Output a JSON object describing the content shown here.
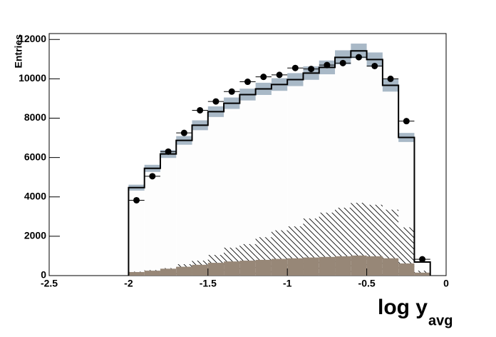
{
  "chart_data": {
    "type": "histogram",
    "xlabel": "log y",
    "xlabel_sub": "avg",
    "ylabel": "Entries",
    "xlim": [
      -2.5,
      0
    ],
    "ylim": [
      0,
      12300
    ],
    "xticks": [
      -2.5,
      -2,
      -1.5,
      -1,
      -0.5,
      0
    ],
    "yticks": [
      0,
      2000,
      4000,
      6000,
      8000,
      10000,
      12000
    ],
    "bins": [
      -2,
      -1.9,
      -1.8,
      -1.7,
      -1.6,
      -1.5,
      -1.4,
      -1.3,
      -1.2,
      -1.1,
      -1,
      -0.9,
      -0.8,
      -0.7,
      -0.6,
      -0.5,
      -0.4,
      -0.3,
      -0.2,
      -0.1
    ],
    "values": [
      4470,
      5450,
      6180,
      6870,
      7640,
      8330,
      8760,
      9200,
      9490,
      9710,
      9960,
      10290,
      10580,
      11090,
      11420,
      10980,
      9670,
      7020,
      690
    ],
    "errors": [
      150,
      180,
      200,
      220,
      250,
      270,
      290,
      300,
      310,
      320,
      330,
      340,
      350,
      360,
      370,
      360,
      320,
      230,
      30
    ],
    "hatched": [
      200,
      280,
      380,
      580,
      760,
      1050,
      1420,
      1600,
      1950,
      2300,
      2500,
      2900,
      3200,
      3450,
      3700,
      3600,
      3350,
      2450,
      250
    ],
    "brown": [
      180,
      250,
      350,
      450,
      550,
      650,
      720,
      760,
      800,
      850,
      880,
      920,
      950,
      980,
      1020,
      980,
      880,
      620,
      150
    ],
    "points": [
      3830,
      5050,
      6300,
      7250,
      8400,
      8850,
      9350,
      9850,
      10100,
      10200,
      10550,
      10500,
      10700,
      10800,
      11100,
      10650,
      10000,
      7850,
      830
    ],
    "fill_color": "#fdfdfd",
    "band_color": "#a9b9c7",
    "brown_color": "#978777",
    "line_color": "#000000"
  }
}
